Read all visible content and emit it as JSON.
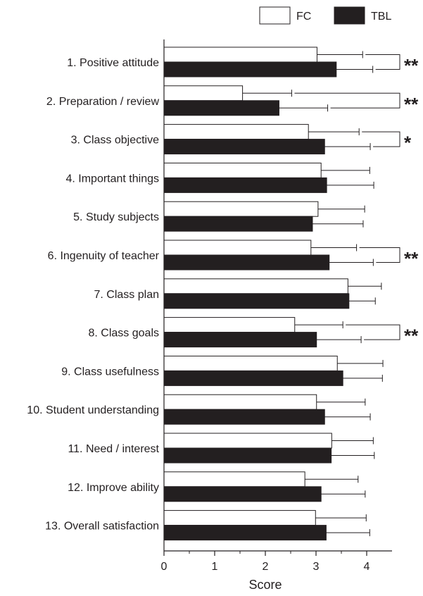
{
  "chart_data": {
    "type": "bar",
    "orientation": "horizontal",
    "title": "",
    "xlabel": "Score",
    "ylabel": "",
    "xlim": [
      0,
      4.5
    ],
    "xticks": [
      0,
      1,
      2,
      3,
      4
    ],
    "grid": false,
    "legend_position": "top-right",
    "categories": [
      "1. Positive attitude",
      "2. Preparation / review",
      "3. Class objective",
      "4. Important things",
      "5. Study subjects",
      "6. Ingenuity of teacher",
      "7. Class plan",
      "8. Class goals",
      "9. Class usefulness",
      "10. Student understanding",
      "11. Need / interest",
      "12. Improve ability",
      "13. Overall satisfaction"
    ],
    "series": [
      {
        "name": "FC",
        "color": "#ffffff",
        "values": [
          3.02,
          1.55,
          2.85,
          3.1,
          3.04,
          2.9,
          3.63,
          2.58,
          3.42,
          3.01,
          3.31,
          2.78,
          2.99
        ],
        "errors": [
          0.9,
          0.97,
          1.0,
          0.96,
          0.92,
          0.9,
          0.66,
          0.95,
          0.9,
          0.96,
          0.82,
          1.05,
          1.0
        ]
      },
      {
        "name": "TBL",
        "color": "#231f20",
        "values": [
          3.4,
          2.27,
          3.17,
          3.21,
          2.93,
          3.26,
          3.65,
          3.01,
          3.53,
          3.17,
          3.3,
          3.1,
          3.2
        ],
        "errors": [
          0.72,
          0.96,
          0.9,
          0.93,
          1.0,
          0.87,
          0.52,
          0.88,
          0.78,
          0.9,
          0.85,
          0.87,
          0.86
        ]
      }
    ],
    "significance": [
      {
        "category_index": 0,
        "label": "**"
      },
      {
        "category_index": 1,
        "label": "**"
      },
      {
        "category_index": 2,
        "label": "*"
      },
      {
        "category_index": 5,
        "label": "**"
      },
      {
        "category_index": 7,
        "label": "**"
      }
    ]
  }
}
